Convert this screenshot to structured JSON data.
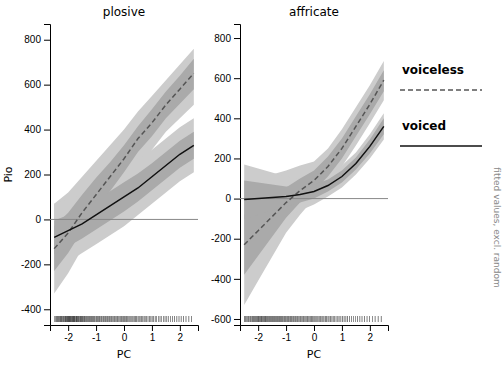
{
  "chart_data": [
    {
      "type": "line",
      "title": "plosive",
      "x_label": "PC",
      "y_label": "Pio",
      "x": [
        -2.5,
        -2.0,
        -1.5,
        -1.0,
        -0.5,
        0.0,
        0.5,
        1.0,
        1.5,
        2.0,
        2.5
      ],
      "series": [
        {
          "name": "voiceless",
          "color": "#555555",
          "line_style": "dashed",
          "values": [
            -130,
            -60,
            30,
            110,
            190,
            270,
            360,
            430,
            510,
            580,
            650
          ],
          "ci_outer": {
            "color": "#cccccc",
            "lo": [
              -330,
              -240,
              -130,
              -30,
              60,
              150,
              240,
              310,
              390,
              450,
              510
            ],
            "hi": [
              70,
              120,
              190,
              260,
              330,
              400,
              480,
              550,
              620,
              690,
              760
            ]
          },
          "ci_inner": {
            "color": "#aaaaaa",
            "lo": [
              -230,
              -150,
              -50,
              40,
              125,
              210,
              300,
              370,
              450,
              515,
              580
            ],
            "hi": [
              -30,
              30,
              110,
              185,
              255,
              330,
              415,
              490,
              570,
              640,
              715
            ]
          }
        },
        {
          "name": "voiced",
          "color": "#111111",
          "line_style": "solid",
          "values": [
            -80,
            -50,
            -20,
            20,
            60,
            100,
            140,
            190,
            240,
            290,
            330
          ],
          "ci_outer": {
            "color": "#cccccc",
            "lo": [
              -230,
              -190,
              -150,
              -110,
              -70,
              -30,
              20,
              70,
              120,
              170,
              210
            ],
            "hi": [
              70,
              90,
              110,
              150,
              190,
              230,
              270,
              310,
              360,
              410,
              450
            ]
          },
          "ci_inner": {
            "color": "#aaaaaa",
            "lo": [
              -155,
              -120,
              -85,
              -45,
              -5,
              35,
              80,
              130,
              180,
              230,
              270
            ],
            "hi": [
              -5,
              20,
              45,
              85,
              125,
              165,
              205,
              250,
              300,
              350,
              390
            ]
          }
        }
      ],
      "hlines": [
        {
          "value": 0,
          "color": "#888888"
        }
      ],
      "rug": {
        "color": "#000000",
        "values": [
          -2.48,
          -2.44,
          -2.41,
          -2.38,
          -2.35,
          -2.32,
          -2.29,
          -2.27,
          -2.24,
          -2.22,
          -2.19,
          -2.16,
          -2.14,
          -2.11,
          -2.09,
          -2.07,
          -2.05,
          -2.03,
          -2.01,
          -1.99,
          -1.97,
          -1.95,
          -1.93,
          -1.91,
          -1.89,
          -1.87,
          -1.85,
          -1.83,
          -1.81,
          -1.79,
          -1.77,
          -1.75,
          -1.72,
          -1.7,
          -1.68,
          -1.66,
          -1.63,
          -1.61,
          -1.58,
          -1.56,
          -1.53,
          -1.51,
          -1.48,
          -1.46,
          -1.43,
          -1.41,
          -1.38,
          -1.35,
          -1.32,
          -1.29,
          -1.26,
          -1.23,
          -1.2,
          -1.17,
          -1.14,
          -1.11,
          -1.08,
          -1.05,
          -1.01,
          -0.98,
          -0.95,
          -0.91,
          -0.88,
          -0.85,
          -0.81,
          -0.78,
          -0.74,
          -0.71,
          -0.67,
          -0.64,
          -0.6,
          -0.57,
          -0.53,
          -0.5,
          -0.46,
          -0.43,
          -0.39,
          -0.35,
          -0.32,
          -0.28,
          -0.24,
          -0.21,
          -0.17,
          -0.13,
          -0.09,
          -0.06,
          -0.02,
          0.02,
          0.06,
          0.09,
          0.13,
          0.17,
          0.21,
          0.25,
          0.29,
          0.33,
          0.37,
          0.41,
          0.45,
          0.5,
          0.54,
          0.58,
          0.63,
          0.67,
          0.72,
          0.76,
          0.81,
          0.86,
          0.91,
          0.96,
          1.01,
          1.06,
          1.12,
          1.17,
          1.23,
          1.29,
          1.35,
          1.41,
          1.47,
          1.53,
          1.6,
          1.67,
          1.74,
          1.81,
          1.89,
          1.97,
          2.05,
          2.13,
          2.22,
          2.32,
          2.42
        ]
      },
      "xlim": [
        -2.65,
        2.65
      ],
      "xticks": [
        -2,
        -1,
        0,
        1,
        2
      ],
      "ylim": [
        -470,
        870
      ],
      "yticks": [
        -400,
        -200,
        0,
        200,
        400,
        600,
        800
      ]
    },
    {
      "type": "line",
      "title": "affricate",
      "x_label": "PC",
      "x": [
        -2.5,
        -2.0,
        -1.5,
        -1.0,
        -0.5,
        0.0,
        0.5,
        1.0,
        1.5,
        2.0,
        2.5
      ],
      "series": [
        {
          "name": "voiceless",
          "color": "#555555",
          "line_style": "dashed",
          "values": [
            -230,
            -160,
            -90,
            -20,
            40,
            90,
            160,
            250,
            360,
            470,
            590
          ],
          "ci_outer": {
            "color": "#cccccc",
            "lo": [
              -530,
              -410,
              -290,
              -170,
              -80,
              0,
              70,
              160,
              265,
              375,
              490
            ],
            "hi": [
              70,
              100,
              120,
              140,
              165,
              185,
              250,
              345,
              455,
              565,
              685
            ]
          },
          "ci_inner": {
            "color": "#aaaaaa",
            "lo": [
              -380,
              -285,
              -190,
              -95,
              -20,
              40,
              110,
              200,
              310,
              420,
              535
            ],
            "hi": [
              -80,
              -35,
              10,
              55,
              100,
              140,
              210,
              300,
              410,
              520,
              640
            ]
          }
        },
        {
          "name": "voiced",
          "color": "#111111",
          "line_style": "solid",
          "values": [
            -5,
            0,
            5,
            10,
            20,
            35,
            65,
            110,
            175,
            260,
            360
          ],
          "ci_outer": {
            "color": "#cccccc",
            "lo": [
              -180,
              -150,
              -120,
              -90,
              -60,
              -30,
              10,
              55,
              120,
              200,
              295
            ],
            "hi": [
              170,
              150,
              130,
              110,
              98,
              100,
              120,
              165,
              230,
              320,
              425
            ]
          },
          "ci_inner": {
            "color": "#aaaaaa",
            "lo": [
              -100,
              -80,
              -60,
              -40,
              -20,
              0,
              35,
              80,
              145,
              225,
              320
            ],
            "hi": [
              90,
              80,
              70,
              60,
              60,
              70,
              95,
              140,
              205,
              295,
              400
            ]
          }
        }
      ],
      "hlines": [
        {
          "value": 0,
          "color": "#888888"
        }
      ],
      "rug": {
        "color": "#000000",
        "values": [
          -2.49,
          -2.45,
          -2.41,
          -2.37,
          -2.34,
          -2.3,
          -2.27,
          -2.23,
          -2.2,
          -2.17,
          -2.14,
          -2.11,
          -2.08,
          -2.05,
          -2.02,
          -1.99,
          -1.97,
          -1.94,
          -1.91,
          -1.88,
          -1.86,
          -1.83,
          -1.8,
          -1.77,
          -1.74,
          -1.72,
          -1.69,
          -1.66,
          -1.63,
          -1.6,
          -1.57,
          -1.54,
          -1.51,
          -1.48,
          -1.45,
          -1.42,
          -1.39,
          -1.36,
          -1.33,
          -1.3,
          -1.27,
          -1.24,
          -1.21,
          -1.18,
          -1.15,
          -1.12,
          -1.08,
          -1.05,
          -1.02,
          -0.99,
          -0.95,
          -0.92,
          -0.89,
          -0.85,
          -0.82,
          -0.79,
          -0.75,
          -0.72,
          -0.68,
          -0.65,
          -0.61,
          -0.58,
          -0.54,
          -0.5,
          -0.47,
          -0.43,
          -0.39,
          -0.36,
          -0.32,
          -0.28,
          -0.24,
          -0.21,
          -0.17,
          -0.13,
          -0.09,
          -0.05,
          -0.01,
          0.03,
          0.07,
          0.11,
          0.15,
          0.19,
          0.23,
          0.28,
          0.32,
          0.36,
          0.41,
          0.45,
          0.5,
          0.54,
          0.59,
          0.64,
          0.69,
          0.74,
          0.79,
          0.85,
          0.9,
          0.96,
          1.02,
          1.08,
          1.14,
          1.2,
          1.27,
          1.34,
          1.41,
          1.48,
          1.56,
          1.64,
          1.72,
          1.81,
          1.9,
          1.99,
          2.09,
          2.19,
          2.3,
          2.41
        ]
      },
      "xlim": [
        -2.65,
        2.65
      ],
      "xticks": [
        -2,
        -1,
        0,
        1,
        2
      ],
      "ylim": [
        -630,
        870
      ],
      "yticks": [
        -600,
        -400,
        -200,
        0,
        200,
        400,
        600,
        800
      ],
      "legend": "right",
      "annotations": [
        "fitted values, excl. random"
      ]
    }
  ]
}
